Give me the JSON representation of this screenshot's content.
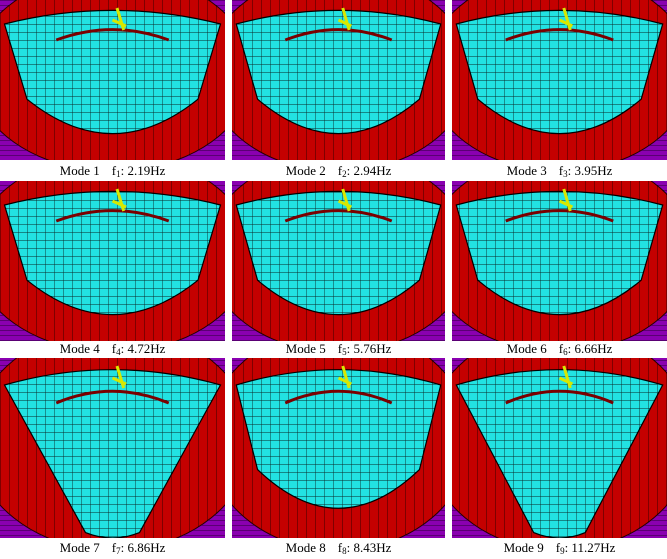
{
  "panels": [
    {
      "mode": "Mode 1",
      "symbol": "f",
      "subscript": "1",
      "value": ": 2.19Hz"
    },
    {
      "mode": "Mode 2",
      "symbol": "f",
      "subscript": "2",
      "value": ": 2.94Hz"
    },
    {
      "mode": "Mode 3",
      "symbol": "f",
      "subscript": "3",
      "value": ": 3.95Hz"
    },
    {
      "mode": "Mode 4",
      "symbol": "f",
      "subscript": "4",
      "value": ": 4.72Hz"
    },
    {
      "mode": "Mode 5",
      "symbol": "f",
      "subscript": "5",
      "value": ": 5.76Hz"
    },
    {
      "mode": "Mode 6",
      "symbol": "f",
      "subscript": "6",
      "value": ": 6.66Hz"
    },
    {
      "mode": "Mode 7",
      "symbol": "f",
      "subscript": "7",
      "value": ": 6.86Hz"
    },
    {
      "mode": "Mode 8",
      "symbol": "f",
      "subscript": "8",
      "value": ": 8.43Hz"
    },
    {
      "mode": "Mode 9",
      "symbol": "f",
      "subscript": "9",
      "value": ": 11.27Hz"
    }
  ]
}
